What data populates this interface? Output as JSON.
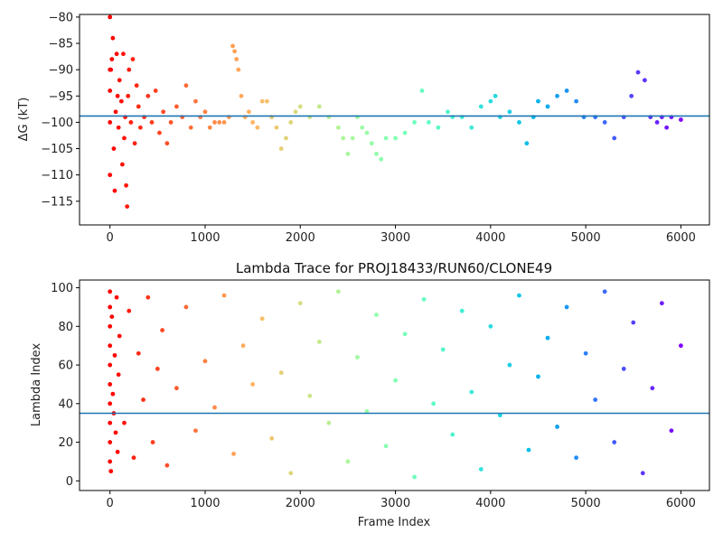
{
  "chart_data": [
    {
      "id": "top",
      "type": "scatter",
      "title": "",
      "xlabel": "",
      "ylabel": "ΔG (kT)",
      "xlim": [
        -320,
        6300
      ],
      "ylim": [
        -119.5,
        -79.5
      ],
      "xticks": [
        0,
        1000,
        2000,
        3000,
        4000,
        5000,
        6000
      ],
      "yticks": [
        -80,
        -85,
        -90,
        -95,
        -100,
        -105,
        -110,
        -115
      ],
      "hline": -98.8,
      "hline_color": "#1f77b4",
      "colormap": "rainbow (red at frame 0 → purple at frame 6000)",
      "grid": false,
      "series_points": [
        [
          0,
          -80
        ],
        [
          0,
          -90
        ],
        [
          0,
          -94
        ],
        [
          0,
          -100
        ],
        [
          0,
          -110
        ],
        [
          10,
          -90
        ],
        [
          20,
          -88
        ],
        [
          30,
          -84
        ],
        [
          40,
          -105
        ],
        [
          50,
          -113
        ],
        [
          60,
          -98
        ],
        [
          70,
          -87
        ],
        [
          80,
          -95
        ],
        [
          90,
          -101
        ],
        [
          100,
          -92
        ],
        [
          120,
          -96
        ],
        [
          130,
          -108
        ],
        [
          140,
          -87
        ],
        [
          150,
          -103
        ],
        [
          160,
          -99
        ],
        [
          170,
          -112
        ],
        [
          180,
          -116
        ],
        [
          190,
          -95
        ],
        [
          200,
          -90
        ],
        [
          220,
          -100
        ],
        [
          240,
          -88
        ],
        [
          260,
          -104
        ],
        [
          280,
          -93
        ],
        [
          300,
          -97
        ],
        [
          320,
          -101
        ],
        [
          360,
          -99
        ],
        [
          400,
          -95
        ],
        [
          440,
          -100
        ],
        [
          480,
          -94
        ],
        [
          520,
          -102
        ],
        [
          560,
          -98
        ],
        [
          600,
          -104
        ],
        [
          640,
          -100
        ],
        [
          700,
          -97
        ],
        [
          760,
          -99
        ],
        [
          800,
          -93
        ],
        [
          850,
          -101
        ],
        [
          900,
          -96
        ],
        [
          950,
          -99
        ],
        [
          1000,
          -98
        ],
        [
          1050,
          -101
        ],
        [
          1100,
          -100
        ],
        [
          1150,
          -100
        ],
        [
          1200,
          -100
        ],
        [
          1250,
          -99
        ],
        [
          1290,
          -85.5
        ],
        [
          1310,
          -86.5
        ],
        [
          1330,
          -88
        ],
        [
          1350,
          -90
        ],
        [
          1380,
          -95
        ],
        [
          1420,
          -99
        ],
        [
          1460,
          -98
        ],
        [
          1500,
          -100
        ],
        [
          1550,
          -101
        ],
        [
          1600,
          -96
        ],
        [
          1650,
          -96
        ],
        [
          1700,
          -99
        ],
        [
          1750,
          -101
        ],
        [
          1800,
          -105
        ],
        [
          1850,
          -103
        ],
        [
          1900,
          -100
        ],
        [
          1950,
          -98
        ],
        [
          2000,
          -97
        ],
        [
          2100,
          -99
        ],
        [
          2200,
          -97
        ],
        [
          2300,
          -99
        ],
        [
          2400,
          -101
        ],
        [
          2450,
          -103
        ],
        [
          2500,
          -106
        ],
        [
          2550,
          -103
        ],
        [
          2600,
          -99
        ],
        [
          2650,
          -101
        ],
        [
          2700,
          -102
        ],
        [
          2750,
          -104
        ],
        [
          2800,
          -106
        ],
        [
          2850,
          -107
        ],
        [
          2900,
          -103
        ],
        [
          3000,
          -103
        ],
        [
          3100,
          -102
        ],
        [
          3200,
          -100
        ],
        [
          3280,
          -94
        ],
        [
          3350,
          -100
        ],
        [
          3450,
          -101
        ],
        [
          3550,
          -98
        ],
        [
          3600,
          -99
        ],
        [
          3700,
          -99
        ],
        [
          3800,
          -101
        ],
        [
          3900,
          -97
        ],
        [
          4000,
          -96
        ],
        [
          4050,
          -95
        ],
        [
          4100,
          -99
        ],
        [
          4200,
          -98
        ],
        [
          4300,
          -100
        ],
        [
          4380,
          -104
        ],
        [
          4450,
          -99
        ],
        [
          4500,
          -96
        ],
        [
          4600,
          -97
        ],
        [
          4700,
          -95
        ],
        [
          4800,
          -94
        ],
        [
          4900,
          -96
        ],
        [
          4980,
          -99
        ],
        [
          5100,
          -99
        ],
        [
          5200,
          -100
        ],
        [
          5300,
          -103
        ],
        [
          5400,
          -99
        ],
        [
          5480,
          -95
        ],
        [
          5550,
          -90.5
        ],
        [
          5620,
          -92
        ],
        [
          5680,
          -99
        ],
        [
          5750,
          -100
        ],
        [
          5800,
          -99
        ],
        [
          5850,
          -101
        ],
        [
          5900,
          -99
        ],
        [
          6000,
          -99.5
        ]
      ]
    },
    {
      "id": "bottom",
      "type": "scatter",
      "title": "Lambda Trace for PROJ18433/RUN60/CLONE49",
      "xlabel": "Frame Index",
      "ylabel": "Lambda Index",
      "xlim": [
        -320,
        6300
      ],
      "ylim": [
        -5,
        104
      ],
      "xticks": [
        0,
        1000,
        2000,
        3000,
        4000,
        5000,
        6000
      ],
      "yticks": [
        0,
        20,
        40,
        60,
        80,
        100
      ],
      "hline": 35,
      "hline_color": "#1f77b4",
      "colormap": "rainbow (red at frame 0 → purple at frame 6000)",
      "grid": false,
      "series_points": [
        [
          0,
          98
        ],
        [
          0,
          90
        ],
        [
          0,
          80
        ],
        [
          0,
          70
        ],
        [
          0,
          60
        ],
        [
          0,
          50
        ],
        [
          0,
          40
        ],
        [
          0,
          30
        ],
        [
          0,
          20
        ],
        [
          0,
          10
        ],
        [
          10,
          5
        ],
        [
          20,
          85
        ],
        [
          30,
          45
        ],
        [
          40,
          35
        ],
        [
          50,
          65
        ],
        [
          60,
          25
        ],
        [
          70,
          95
        ],
        [
          80,
          15
        ],
        [
          90,
          55
        ],
        [
          100,
          75
        ],
        [
          150,
          30
        ],
        [
          200,
          88
        ],
        [
          250,
          12
        ],
        [
          300,
          66
        ],
        [
          350,
          42
        ],
        [
          400,
          95
        ],
        [
          450,
          20
        ],
        [
          500,
          58
        ],
        [
          550,
          78
        ],
        [
          600,
          8
        ],
        [
          700,
          48
        ],
        [
          800,
          90
        ],
        [
          900,
          26
        ],
        [
          1000,
          62
        ],
        [
          1100,
          38
        ],
        [
          1200,
          96
        ],
        [
          1300,
          14
        ],
        [
          1400,
          70
        ],
        [
          1500,
          50
        ],
        [
          1600,
          84
        ],
        [
          1700,
          22
        ],
        [
          1800,
          56
        ],
        [
          1900,
          4
        ],
        [
          2000,
          92
        ],
        [
          2100,
          44
        ],
        [
          2200,
          72
        ],
        [
          2300,
          30
        ],
        [
          2400,
          98
        ],
        [
          2500,
          10
        ],
        [
          2600,
          64
        ],
        [
          2700,
          36
        ],
        [
          2800,
          86
        ],
        [
          2900,
          18
        ],
        [
          3000,
          52
        ],
        [
          3100,
          76
        ],
        [
          3200,
          2
        ],
        [
          3300,
          94
        ],
        [
          3400,
          40
        ],
        [
          3500,
          68
        ],
        [
          3600,
          24
        ],
        [
          3700,
          88
        ],
        [
          3800,
          46
        ],
        [
          3900,
          6
        ],
        [
          4000,
          80
        ],
        [
          4100,
          34
        ],
        [
          4200,
          60
        ],
        [
          4300,
          96
        ],
        [
          4400,
          16
        ],
        [
          4500,
          54
        ],
        [
          4600,
          74
        ],
        [
          4700,
          28
        ],
        [
          4800,
          90
        ],
        [
          4900,
          12
        ],
        [
          5000,
          66
        ],
        [
          5100,
          42
        ],
        [
          5200,
          98
        ],
        [
          5300,
          20
        ],
        [
          5400,
          58
        ],
        [
          5500,
          82
        ],
        [
          5600,
          4
        ],
        [
          5700,
          48
        ],
        [
          5800,
          92
        ],
        [
          5900,
          26
        ],
        [
          6000,
          70
        ]
      ]
    }
  ]
}
